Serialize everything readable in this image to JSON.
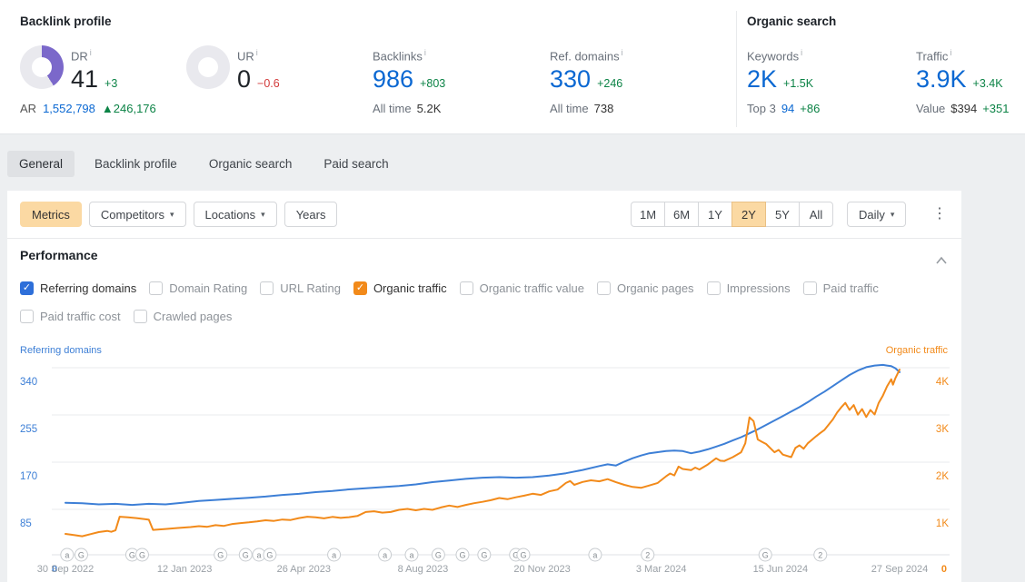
{
  "header": {
    "backlink_profile": {
      "title": "Backlink profile",
      "dr": {
        "label": "DR",
        "value": "41",
        "delta": "+3",
        "percent": 41
      },
      "ur": {
        "label": "UR",
        "value": "0",
        "delta": "−0.6"
      },
      "ar": {
        "label": "AR",
        "value": "1,552,798",
        "delta": "▲246,176"
      },
      "backlinks": {
        "label": "Backlinks",
        "value": "986",
        "delta": "+803",
        "alltime_label": "All time",
        "alltime_value": "5.2K"
      },
      "ref_domains": {
        "label": "Ref. domains",
        "value": "330",
        "delta": "+246",
        "alltime_label": "All time",
        "alltime_value": "738"
      }
    },
    "organic_search": {
      "title": "Organic search",
      "keywords": {
        "label": "Keywords",
        "value": "2K",
        "delta": "+1.5K",
        "sub_label": "Top 3",
        "sub_value": "94",
        "sub_delta": "+86"
      },
      "traffic": {
        "label": "Traffic",
        "value": "3.9K",
        "delta": "+3.4K",
        "sub_label": "Value",
        "sub_value": "$394",
        "sub_delta": "+351"
      }
    }
  },
  "tabs": {
    "items": [
      "General",
      "Backlink profile",
      "Organic search",
      "Paid search"
    ],
    "selected": "General"
  },
  "toolbar": {
    "chips": [
      {
        "label": "Metrics",
        "selected": true,
        "dropdown": false
      },
      {
        "label": "Competitors",
        "selected": false,
        "dropdown": true
      },
      {
        "label": "Locations",
        "selected": false,
        "dropdown": true
      },
      {
        "label": "Years",
        "selected": false,
        "dropdown": false
      }
    ],
    "ranges": {
      "items": [
        "1M",
        "6M",
        "1Y",
        "2Y",
        "5Y",
        "All"
      ],
      "selected": "2Y"
    },
    "granularity": {
      "label": "Daily"
    }
  },
  "performance": {
    "title": "Performance",
    "metric_rows": [
      [
        {
          "label": "Referring domains",
          "checked": true,
          "color": "#2e6fd9"
        },
        {
          "label": "Domain Rating",
          "checked": false,
          "color": null
        },
        {
          "label": "URL Rating",
          "checked": false,
          "color": null
        },
        {
          "label": "Organic traffic",
          "checked": true,
          "color": "#f28a1a"
        },
        {
          "label": "Organic traffic value",
          "checked": false,
          "color": null
        },
        {
          "label": "Organic pages",
          "checked": false,
          "color": null
        },
        {
          "label": "Impressions",
          "checked": false,
          "color": null
        },
        {
          "label": "Paid traffic",
          "checked": false,
          "color": null
        }
      ],
      [
        {
          "label": "Paid traffic cost",
          "checked": false,
          "color": null
        },
        {
          "label": "Crawled pages",
          "checked": false,
          "color": null
        }
      ]
    ]
  },
  "chart_data": {
    "type": "line",
    "grid": true,
    "legend_position": "top",
    "left_axis": {
      "label": "Referring domains",
      "color": "#3d7fd6",
      "min": 0,
      "max": 340,
      "ticks": [
        "340",
        "255",
        "170",
        "85"
      ],
      "zero_label": "0"
    },
    "right_axis": {
      "label": "Organic traffic",
      "color": "#f28a1a",
      "min": 0,
      "max": 4000,
      "ticks": [
        "4K",
        "3K",
        "2K",
        "1K"
      ],
      "zero_label": "0"
    },
    "x_labels": [
      "30 Sep 2022",
      "12 Jan 2023",
      "26 Apr 2023",
      "8 Aug 2023",
      "20 Nov 2023",
      "3 Mar 2024",
      "15 Jun 2024",
      "27 Sep 2024"
    ],
    "series": [
      {
        "name": "Referring domains",
        "axis": "left",
        "color": "#3d7fd6",
        "points": [
          [
            0,
            97
          ],
          [
            0.02,
            96
          ],
          [
            0.04,
            94
          ],
          [
            0.06,
            95
          ],
          [
            0.08,
            93
          ],
          [
            0.1,
            95
          ],
          [
            0.12,
            94
          ],
          [
            0.14,
            97
          ],
          [
            0.16,
            100
          ],
          [
            0.18,
            102
          ],
          [
            0.2,
            104
          ],
          [
            0.22,
            106
          ],
          [
            0.24,
            108
          ],
          [
            0.26,
            111
          ],
          [
            0.28,
            113
          ],
          [
            0.3,
            116
          ],
          [
            0.32,
            118
          ],
          [
            0.34,
            121
          ],
          [
            0.36,
            123
          ],
          [
            0.38,
            125
          ],
          [
            0.4,
            127
          ],
          [
            0.42,
            130
          ],
          [
            0.44,
            134
          ],
          [
            0.46,
            137
          ],
          [
            0.48,
            140
          ],
          [
            0.5,
            142
          ],
          [
            0.52,
            143
          ],
          [
            0.54,
            142
          ],
          [
            0.56,
            143
          ],
          [
            0.58,
            146
          ],
          [
            0.6,
            150
          ],
          [
            0.62,
            156
          ],
          [
            0.64,
            163
          ],
          [
            0.65,
            166
          ],
          [
            0.66,
            164
          ],
          [
            0.67,
            171
          ],
          [
            0.68,
            177
          ],
          [
            0.69,
            182
          ],
          [
            0.7,
            186
          ],
          [
            0.71,
            188
          ],
          [
            0.72,
            190
          ],
          [
            0.73,
            191
          ],
          [
            0.74,
            190
          ],
          [
            0.75,
            186
          ],
          [
            0.76,
            189
          ],
          [
            0.77,
            193
          ],
          [
            0.78,
            198
          ],
          [
            0.79,
            203
          ],
          [
            0.8,
            209
          ],
          [
            0.81,
            215
          ],
          [
            0.82,
            222
          ],
          [
            0.83,
            229
          ],
          [
            0.84,
            237
          ],
          [
            0.85,
            245
          ],
          [
            0.86,
            253
          ],
          [
            0.87,
            261
          ],
          [
            0.88,
            269
          ],
          [
            0.89,
            278
          ],
          [
            0.9,
            288
          ],
          [
            0.91,
            297
          ],
          [
            0.92,
            307
          ],
          [
            0.93,
            317
          ],
          [
            0.94,
            327
          ],
          [
            0.95,
            335
          ],
          [
            0.96,
            341
          ],
          [
            0.97,
            344
          ],
          [
            0.98,
            345
          ],
          [
            0.985,
            344
          ],
          [
            0.99,
            343
          ],
          [
            0.995,
            339
          ],
          [
            1,
            332
          ]
        ]
      },
      {
        "name": "Organic traffic",
        "axis": "right",
        "color": "#f28a1a",
        "points": [
          [
            0,
            480
          ],
          [
            0.01,
            455
          ],
          [
            0.02,
            430
          ],
          [
            0.03,
            475
          ],
          [
            0.04,
            520
          ],
          [
            0.05,
            545
          ],
          [
            0.055,
            525
          ],
          [
            0.06,
            555
          ],
          [
            0.065,
            845
          ],
          [
            0.075,
            830
          ],
          [
            0.085,
            815
          ],
          [
            0.095,
            795
          ],
          [
            0.1,
            780
          ],
          [
            0.105,
            565
          ],
          [
            0.12,
            585
          ],
          [
            0.135,
            605
          ],
          [
            0.15,
            625
          ],
          [
            0.16,
            645
          ],
          [
            0.17,
            630
          ],
          [
            0.18,
            665
          ],
          [
            0.19,
            650
          ],
          [
            0.2,
            690
          ],
          [
            0.21,
            710
          ],
          [
            0.22,
            725
          ],
          [
            0.23,
            745
          ],
          [
            0.24,
            770
          ],
          [
            0.25,
            755
          ],
          [
            0.26,
            785
          ],
          [
            0.27,
            775
          ],
          [
            0.28,
            815
          ],
          [
            0.29,
            845
          ],
          [
            0.3,
            830
          ],
          [
            0.31,
            810
          ],
          [
            0.32,
            840
          ],
          [
            0.33,
            820
          ],
          [
            0.34,
            835
          ],
          [
            0.35,
            860
          ],
          [
            0.36,
            945
          ],
          [
            0.37,
            960
          ],
          [
            0.38,
            930
          ],
          [
            0.39,
            945
          ],
          [
            0.4,
            990
          ],
          [
            0.41,
            1010
          ],
          [
            0.42,
            980
          ],
          [
            0.43,
            1010
          ],
          [
            0.44,
            990
          ],
          [
            0.45,
            1040
          ],
          [
            0.46,
            1080
          ],
          [
            0.47,
            1050
          ],
          [
            0.48,
            1095
          ],
          [
            0.49,
            1130
          ],
          [
            0.5,
            1160
          ],
          [
            0.51,
            1195
          ],
          [
            0.52,
            1240
          ],
          [
            0.53,
            1215
          ],
          [
            0.54,
            1255
          ],
          [
            0.55,
            1290
          ],
          [
            0.56,
            1330
          ],
          [
            0.57,
            1305
          ],
          [
            0.58,
            1380
          ],
          [
            0.59,
            1420
          ],
          [
            0.6,
            1560
          ],
          [
            0.605,
            1600
          ],
          [
            0.61,
            1520
          ],
          [
            0.62,
            1580
          ],
          [
            0.63,
            1615
          ],
          [
            0.64,
            1595
          ],
          [
            0.65,
            1640
          ],
          [
            0.66,
            1575
          ],
          [
            0.67,
            1520
          ],
          [
            0.68,
            1475
          ],
          [
            0.69,
            1455
          ],
          [
            0.7,
            1505
          ],
          [
            0.71,
            1560
          ],
          [
            0.72,
            1700
          ],
          [
            0.725,
            1760
          ],
          [
            0.73,
            1720
          ],
          [
            0.735,
            1905
          ],
          [
            0.74,
            1855
          ],
          [
            0.75,
            1830
          ],
          [
            0.755,
            1885
          ],
          [
            0.76,
            1845
          ],
          [
            0.77,
            1950
          ],
          [
            0.78,
            2080
          ],
          [
            0.785,
            2030
          ],
          [
            0.79,
            2025
          ],
          [
            0.8,
            2105
          ],
          [
            0.81,
            2210
          ],
          [
            0.815,
            2400
          ],
          [
            0.82,
            2950
          ],
          [
            0.825,
            2870
          ],
          [
            0.83,
            2480
          ],
          [
            0.835,
            2430
          ],
          [
            0.84,
            2385
          ],
          [
            0.85,
            2210
          ],
          [
            0.855,
            2260
          ],
          [
            0.86,
            2160
          ],
          [
            0.87,
            2105
          ],
          [
            0.875,
            2300
          ],
          [
            0.88,
            2355
          ],
          [
            0.885,
            2285
          ],
          [
            0.89,
            2400
          ],
          [
            0.9,
            2550
          ],
          [
            0.905,
            2620
          ],
          [
            0.91,
            2685
          ],
          [
            0.92,
            2905
          ],
          [
            0.925,
            3050
          ],
          [
            0.93,
            3160
          ],
          [
            0.935,
            3255
          ],
          [
            0.94,
            3105
          ],
          [
            0.945,
            3210
          ],
          [
            0.95,
            3005
          ],
          [
            0.955,
            3125
          ],
          [
            0.96,
            2955
          ],
          [
            0.965,
            3105
          ],
          [
            0.97,
            3010
          ],
          [
            0.975,
            3255
          ],
          [
            0.98,
            3410
          ],
          [
            0.985,
            3605
          ],
          [
            0.99,
            3755
          ],
          [
            0.992,
            3640
          ],
          [
            0.995,
            3780
          ],
          [
            1,
            3960
          ]
        ]
      }
    ],
    "annotations": [
      {
        "t": 0.002,
        "label": "a"
      },
      {
        "t": 0.019,
        "label": "G"
      },
      {
        "t": 0.08,
        "label": "G"
      },
      {
        "t": 0.092,
        "label": "G"
      },
      {
        "t": 0.186,
        "label": "G"
      },
      {
        "t": 0.216,
        "label": "G"
      },
      {
        "t": 0.232,
        "label": "a"
      },
      {
        "t": 0.245,
        "label": "G"
      },
      {
        "t": 0.322,
        "label": "a"
      },
      {
        "t": 0.383,
        "label": "a"
      },
      {
        "t": 0.415,
        "label": "a"
      },
      {
        "t": 0.447,
        "label": "G"
      },
      {
        "t": 0.476,
        "label": "G"
      },
      {
        "t": 0.502,
        "label": "G"
      },
      {
        "t": 0.54,
        "label": "G"
      },
      {
        "t": 0.549,
        "label": "G"
      },
      {
        "t": 0.635,
        "label": "a"
      },
      {
        "t": 0.698,
        "label": "2"
      },
      {
        "t": 0.839,
        "label": "G"
      },
      {
        "t": 0.905,
        "label": "2"
      }
    ]
  },
  "icons": {
    "info": "i",
    "caret": "▾",
    "kebab": "⋮",
    "check": "✓"
  },
  "colors": {
    "blue": "#0b68d2",
    "green": "#0c8346",
    "red": "#d23b3b",
    "purple": "#7b68ca",
    "donut_track": "#e9e9ee",
    "chart_blue": "#3d7fd6",
    "chart_orange": "#f28a1a",
    "selected_chip_bg": "#fbd9a3"
  }
}
